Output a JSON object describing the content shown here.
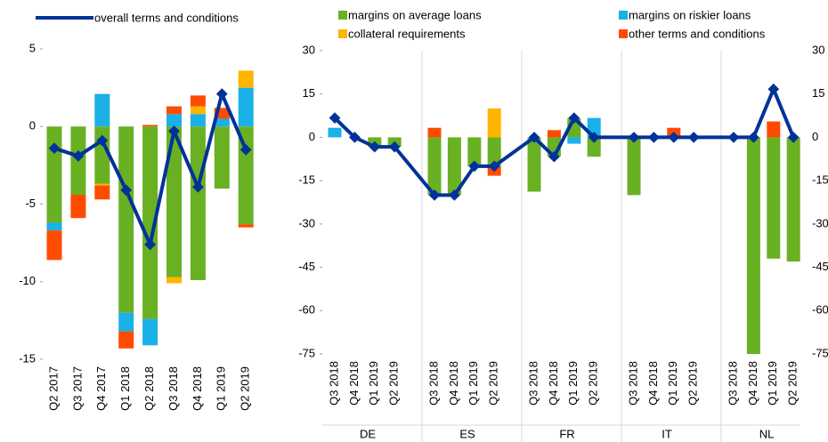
{
  "chart_data": [
    {
      "type": "bar",
      "stacked": true,
      "categories": [
        "Q2 2017",
        "Q3 2017",
        "Q4 2017",
        "Q1 2018",
        "Q2 2018",
        "Q3 2018",
        "Q4 2018",
        "Q1 2019",
        "Q2 2019"
      ],
      "series": [
        {
          "color": "#6ab023",
          "values": [
            -6.2,
            -4.4,
            -3.7,
            -12,
            -12.4,
            -9.7,
            -9.9,
            -4.0,
            -6.3
          ]
        },
        {
          "color": "#1ab0e8",
          "values": [
            -0.5,
            0,
            2.1,
            -1.2,
            -1.7,
            0.8,
            0.8,
            0.5,
            2.5
          ]
        },
        {
          "color": "#ffb400",
          "values": [
            0,
            0,
            -0.1,
            0,
            0,
            -0.4,
            0.5,
            0,
            1.1
          ]
        },
        {
          "color": "#ff4b00",
          "values": [
            -1.9,
            -1.5,
            -0.9,
            -1.1,
            0.1,
            0.5,
            0.7,
            0.7,
            -0.2
          ]
        }
      ],
      "line": {
        "name": "overall terms and conditions",
        "color": "#003299",
        "values": [
          -1.4,
          -1.9,
          -0.9,
          -4.1,
          -7.6,
          -0.3,
          -3.9,
          2.1,
          -1.5
        ]
      },
      "ylim": [
        -15,
        5
      ],
      "yticks": [
        -15,
        -10,
        -5,
        0,
        5
      ]
    },
    {
      "type": "bar",
      "stacked": true,
      "categories": [
        "Q3 2018",
        "Q4 2018",
        "Q1 2019",
        "Q2 2019",
        "Q3 2018",
        "Q4 2018",
        "Q1 2019",
        "Q2 2019",
        "Q3 2018",
        "Q4 2018",
        "Q1 2019",
        "Q2 2019",
        "Q3 2018",
        "Q4 2018",
        "Q1 2019",
        "Q2 2019",
        "Q3 2018",
        "Q4 2018",
        "Q1 2019",
        "Q2 2019"
      ],
      "groups": [
        "DE",
        "ES",
        "FR",
        "IT",
        "NL"
      ],
      "series": [
        {
          "name": "margins on average loans",
          "color": "#6ab023",
          "values": [
            0,
            0,
            -3.3,
            -3.3,
            -20,
            -20,
            -10,
            -10,
            -18.8,
            -6.7,
            6.7,
            -6.7,
            -20,
            0,
            0,
            0,
            0,
            -75,
            -42,
            -43
          ]
        },
        {
          "name": "margins on riskier loans",
          "color": "#1ab0e8",
          "values": [
            3.3,
            0,
            0,
            0,
            0,
            0,
            0,
            0,
            0,
            0,
            -2.2,
            6.7,
            0,
            0,
            0,
            0,
            0,
            0,
            0,
            0
          ]
        },
        {
          "name": "collateral requirements",
          "color": "#ffb400",
          "values": [
            0,
            0,
            0,
            0,
            0,
            0,
            0,
            10,
            0,
            0,
            0,
            0,
            0,
            0,
            0,
            0,
            0,
            0,
            0,
            0
          ]
        },
        {
          "name": "other terms and conditions",
          "color": "#ff4b00",
          "values": [
            0,
            0,
            0,
            0,
            3.3,
            0,
            0,
            -3.3,
            0,
            2.5,
            0,
            0,
            0,
            0,
            3.3,
            0,
            0,
            0,
            5.5,
            0
          ]
        }
      ],
      "line": {
        "color": "#003299",
        "values": [
          6.7,
          0,
          -3.3,
          -3.3,
          -20,
          -20,
          -10,
          -10,
          0,
          -6.7,
          6.7,
          0,
          0,
          0,
          0,
          0,
          0,
          0,
          16.7,
          0
        ]
      },
      "ylim": [
        -75,
        30
      ],
      "yticks": [
        -75,
        -60,
        -45,
        -30,
        -15,
        0,
        15,
        30
      ]
    }
  ]
}
